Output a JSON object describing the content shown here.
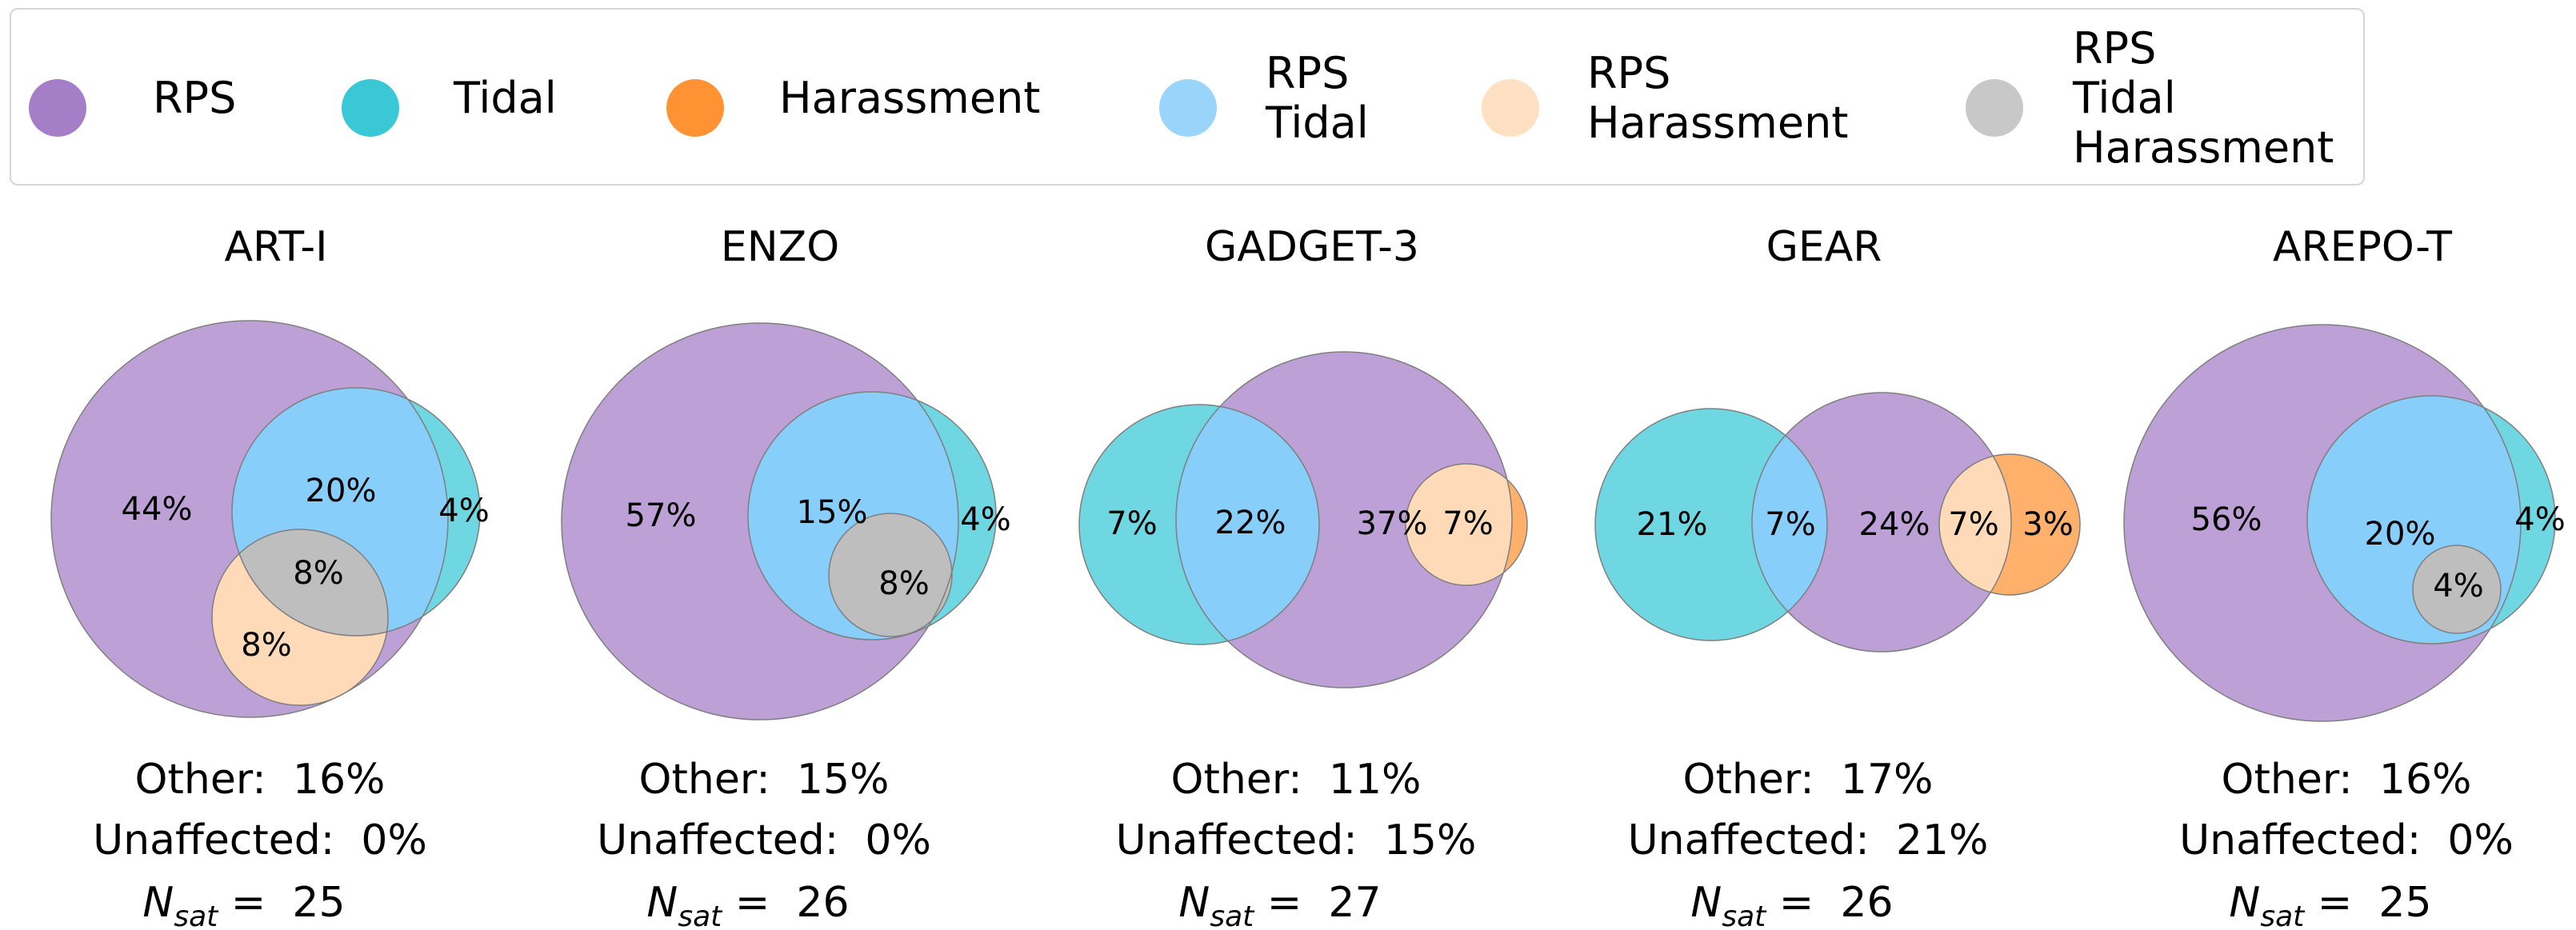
{
  "legend": {
    "items": [
      {
        "lines": [
          "RPS"
        ],
        "color": "#9467bd"
      },
      {
        "lines": [
          "Tidal"
        ],
        "color": "#17becf"
      },
      {
        "lines": [
          "Harassment"
        ],
        "color": "#ff7f0e"
      },
      {
        "lines": [
          "RPS",
          "Tidal"
        ],
        "color": "#87cefa"
      },
      {
        "lines": [
          "RPS",
          "Harassment"
        ],
        "color": "#ffdab9"
      },
      {
        "lines": [
          "RPS",
          "Tidal",
          "Harassment"
        ],
        "color": "#bebebe"
      }
    ]
  },
  "chart_data": [
    {
      "type": "venn",
      "title": "ART-I",
      "regions": [
        {
          "sets": [
            "RPS"
          ],
          "label": "44%"
        },
        {
          "sets": [
            "RPS",
            "Tidal"
          ],
          "label": "20%"
        },
        {
          "sets": [
            "Tidal"
          ],
          "label": "4%"
        },
        {
          "sets": [
            "RPS",
            "Tidal",
            "Harassment"
          ],
          "label": "8%"
        },
        {
          "sets": [
            "RPS",
            "Harassment"
          ],
          "label": "8%"
        }
      ],
      "other": "16%",
      "unaffected": "0%",
      "n_sat": "25"
    },
    {
      "type": "venn",
      "title": "ENZO",
      "regions": [
        {
          "sets": [
            "RPS"
          ],
          "label": "57%"
        },
        {
          "sets": [
            "RPS",
            "Tidal"
          ],
          "label": "15%"
        },
        {
          "sets": [
            "Tidal"
          ],
          "label": "4%"
        },
        {
          "sets": [
            "RPS",
            "Tidal",
            "Harassment"
          ],
          "label": "8%"
        }
      ],
      "other": "15%",
      "unaffected": "0%",
      "n_sat": "26"
    },
    {
      "type": "venn",
      "title": "GADGET-3",
      "regions": [
        {
          "sets": [
            "Tidal"
          ],
          "label": "7%"
        },
        {
          "sets": [
            "RPS",
            "Tidal"
          ],
          "label": "22%"
        },
        {
          "sets": [
            "RPS"
          ],
          "label": "37%"
        },
        {
          "sets": [
            "RPS",
            "Harassment"
          ],
          "label": "7%"
        }
      ],
      "other": "11%",
      "unaffected": "15%",
      "n_sat": "27"
    },
    {
      "type": "venn",
      "title": "GEAR",
      "regions": [
        {
          "sets": [
            "Tidal"
          ],
          "label": "21%"
        },
        {
          "sets": [
            "RPS",
            "Tidal"
          ],
          "label": "7%"
        },
        {
          "sets": [
            "RPS"
          ],
          "label": "24%"
        },
        {
          "sets": [
            "RPS",
            "Harassment"
          ],
          "label": "7%"
        },
        {
          "sets": [
            "Harassment"
          ],
          "label": "3%"
        }
      ],
      "other": "17%",
      "unaffected": "21%",
      "n_sat": "26"
    },
    {
      "type": "venn",
      "title": "AREPO-T",
      "regions": [
        {
          "sets": [
            "RPS"
          ],
          "label": "56%"
        },
        {
          "sets": [
            "RPS",
            "Tidal"
          ],
          "label": "20%"
        },
        {
          "sets": [
            "Tidal"
          ],
          "label": "4%"
        },
        {
          "sets": [
            "RPS",
            "Tidal",
            "Harassment"
          ],
          "label": "4%"
        }
      ],
      "other": "16%",
      "unaffected": "0%",
      "n_sat": "25"
    }
  ],
  "stat_labels": {
    "other": "Other:",
    "unaffected": "Unaffected:",
    "n_main": "N",
    "n_sub": "sat",
    "n_eq": "="
  }
}
